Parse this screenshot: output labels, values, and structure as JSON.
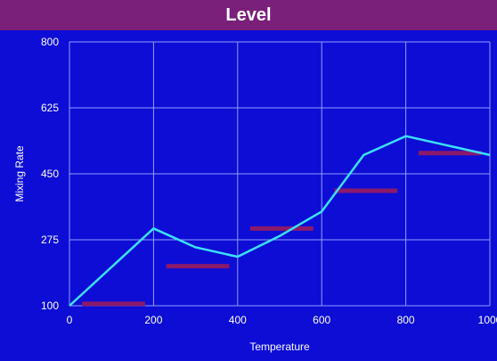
{
  "chart_data": {
    "type": "line",
    "title": "Level",
    "xlabel": "Temperature",
    "ylabel": "Mixing Rate",
    "xlim": [
      0,
      1000
    ],
    "ylim": [
      100,
      800
    ],
    "x_ticks": [
      0,
      200,
      400,
      600,
      800,
      1000
    ],
    "y_ticks": [
      100,
      275,
      450,
      625,
      800
    ],
    "grid": true,
    "colors": {
      "background": "#0d0dd6",
      "title_bar": "#7a1f7a",
      "line": "#3de0ff",
      "level_bars": "#8a1a6a",
      "grid": "#8fa0ff",
      "text": "#ffffff"
    },
    "series": [
      {
        "type": "line",
        "x": [
          0,
          200,
          300,
          400,
          500,
          600,
          700,
          800,
          900,
          1000
        ],
        "values": [
          100,
          305,
          255,
          230,
          285,
          350,
          500,
          550,
          525,
          500
        ]
      }
    ],
    "levels": [
      {
        "x_start": 30,
        "x_end": 180,
        "value": 105
      },
      {
        "x_start": 230,
        "x_end": 380,
        "value": 205
      },
      {
        "x_start": 430,
        "x_end": 580,
        "value": 305
      },
      {
        "x_start": 630,
        "x_end": 780,
        "value": 405
      },
      {
        "x_start": 830,
        "x_end": 980,
        "value": 505
      }
    ]
  }
}
